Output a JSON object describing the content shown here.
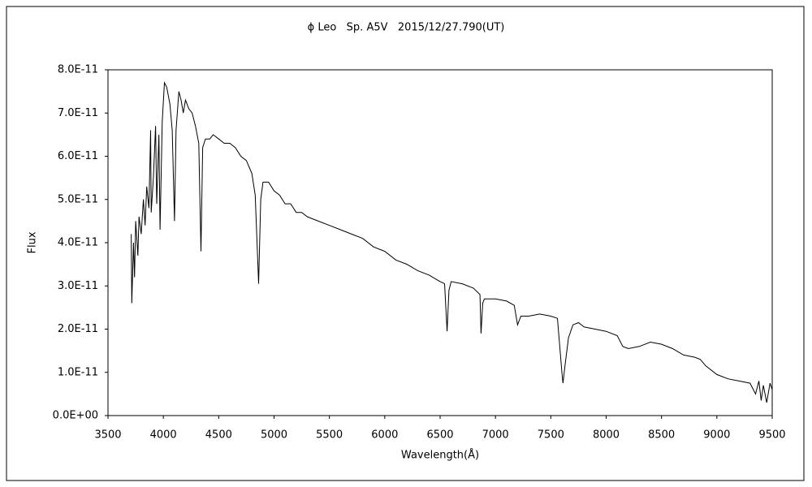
{
  "chart_data": {
    "type": "line",
    "title": "ϕ Leo   Sp. A5V   2015/12/27.790(UT)",
    "xlabel": "Wavelength(Å)",
    "ylabel": "Flux",
    "xlim": [
      3500,
      9500
    ],
    "ylim": [
      0,
      8e-11
    ],
    "xticks": [
      3500,
      4000,
      4500,
      5000,
      5500,
      6000,
      6500,
      7000,
      7500,
      8000,
      8500,
      9000,
      9500
    ],
    "yticks": [
      {
        "value": 0,
        "label": "0.0E+00"
      },
      {
        "value": 1e-11,
        "label": "1.0E-11"
      },
      {
        "value": 2e-11,
        "label": "2.0E-11"
      },
      {
        "value": 3e-11,
        "label": "3.0E-11"
      },
      {
        "value": 4e-11,
        "label": "4.0E-11"
      },
      {
        "value": 5e-11,
        "label": "5.0E-11"
      },
      {
        "value": 6e-11,
        "label": "6.0E-11"
      },
      {
        "value": 7e-11,
        "label": "7.0E-11"
      },
      {
        "value": 8e-11,
        "label": "8.0E-11"
      }
    ],
    "color": "#000000",
    "x": [
      3710,
      3715,
      3730,
      3740,
      3750,
      3770,
      3780,
      3800,
      3820,
      3835,
      3850,
      3870,
      3885,
      3890,
      3910,
      3930,
      3940,
      3960,
      3970,
      3990,
      4010,
      4030,
      4060,
      4080,
      4101,
      4115,
      4140,
      4160,
      4180,
      4200,
      4230,
      4260,
      4290,
      4320,
      4340,
      4355,
      4380,
      4420,
      4450,
      4500,
      4550,
      4600,
      4650,
      4700,
      4750,
      4800,
      4830,
      4861,
      4880,
      4900,
      4950,
      5000,
      5050,
      5100,
      5150,
      5200,
      5250,
      5300,
      5400,
      5500,
      5600,
      5700,
      5800,
      5900,
      6000,
      6100,
      6200,
      6300,
      6400,
      6500,
      6540,
      6563,
      6580,
      6600,
      6700,
      6800,
      6860,
      6870,
      6885,
      6900,
      7000,
      7100,
      7170,
      7200,
      7230,
      7300,
      7400,
      7500,
      7560,
      7600,
      7610,
      7630,
      7660,
      7700,
      7750,
      7800,
      7900,
      8000,
      8100,
      8150,
      8200,
      8300,
      8400,
      8500,
      8600,
      8700,
      8800,
      8850,
      8900,
      9000,
      9100,
      9200,
      9300,
      9350,
      9380,
      9400,
      9420,
      9450,
      9480,
      9500
    ],
    "values": [
      4.2e-11,
      2.6e-11,
      4e-11,
      3.2e-11,
      4.5e-11,
      3.7e-11,
      4.6e-11,
      4.2e-11,
      5e-11,
      4.4e-11,
      5.3e-11,
      4.8e-11,
      6.6e-11,
      4.7e-11,
      5.5e-11,
      6.7e-11,
      4.9e-11,
      6.5e-11,
      4.3e-11,
      6.8e-11,
      7.7e-11,
      7.6e-11,
      7.2e-11,
      6.6e-11,
      4.5e-11,
      6.6e-11,
      7.5e-11,
      7.3e-11,
      7e-11,
      7.3e-11,
      7.1e-11,
      7e-11,
      6.7e-11,
      6.3e-11,
      3.8e-11,
      6.2e-11,
      6.4e-11,
      6.4e-11,
      6.5e-11,
      6.4e-11,
      6.3e-11,
      6.3e-11,
      6.2e-11,
      6e-11,
      5.9e-11,
      5.6e-11,
      5.1e-11,
      3.05e-11,
      5e-11,
      5.4e-11,
      5.4e-11,
      5.2e-11,
      5.1e-11,
      4.9e-11,
      4.9e-11,
      4.7e-11,
      4.7e-11,
      4.6e-11,
      4.5e-11,
      4.4e-11,
      4.3e-11,
      4.2e-11,
      4.1e-11,
      3.9e-11,
      3.8e-11,
      3.6e-11,
      3.5e-11,
      3.35e-11,
      3.25e-11,
      3.1e-11,
      3.05e-11,
      1.95e-11,
      2.9e-11,
      3.1e-11,
      3.05e-11,
      2.95e-11,
      2.8e-11,
      1.9e-11,
      2.6e-11,
      2.7e-11,
      2.7e-11,
      2.65e-11,
      2.55e-11,
      2.1e-11,
      2.3e-11,
      2.3e-11,
      2.35e-11,
      2.3e-11,
      2.25e-11,
      1e-11,
      7.5e-12,
      1.2e-11,
      1.8e-11,
      2.1e-11,
      2.15e-11,
      2.05e-11,
      2e-11,
      1.95e-11,
      1.85e-11,
      1.6e-11,
      1.55e-11,
      1.6e-11,
      1.7e-11,
      1.65e-11,
      1.55e-11,
      1.4e-11,
      1.35e-11,
      1.3e-11,
      1.15e-11,
      9.5e-12,
      8.5e-12,
      8e-12,
      7.5e-12,
      5e-12,
      8e-12,
      3.5e-12,
      7e-12,
      3e-12,
      7.5e-12,
      6e-12
    ]
  }
}
